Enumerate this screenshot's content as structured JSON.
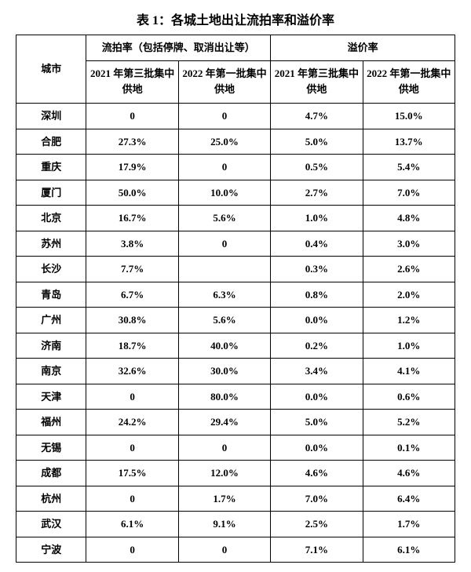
{
  "title": "表 1：各城土地出让流拍率和溢价率",
  "header": {
    "city_label": "城市",
    "group1": "流拍率（包括停牌、取消出让等）",
    "group2": "溢价率",
    "sub1": "2021 年第三批集中供地",
    "sub2": "2022 年第一批集中供地",
    "sub3": "2021 年第三批集中供地",
    "sub4": "2022 年第一批集中供地"
  },
  "rows": [
    {
      "city": "深圳",
      "c1": "0",
      "c2": "0",
      "c3": "4.7%",
      "c4": "15.0%"
    },
    {
      "city": "合肥",
      "c1": "27.3%",
      "c2": "25.0%",
      "c3": "5.0%",
      "c4": "13.7%"
    },
    {
      "city": "重庆",
      "c1": "17.9%",
      "c2": "0",
      "c3": "0.5%",
      "c4": "5.4%"
    },
    {
      "city": "厦门",
      "c1": "50.0%",
      "c2": "10.0%",
      "c3": "2.7%",
      "c4": "7.0%"
    },
    {
      "city": "北京",
      "c1": "16.7%",
      "c2": "5.6%",
      "c3": "1.0%",
      "c4": "4.8%"
    },
    {
      "city": "苏州",
      "c1": "3.8%",
      "c2": "0",
      "c3": "0.4%",
      "c4": "3.0%"
    },
    {
      "city": "长沙",
      "c1": "7.7%",
      "c2": "",
      "c3": "0.3%",
      "c4": "2.6%"
    },
    {
      "city": "青岛",
      "c1": "6.7%",
      "c2": "6.3%",
      "c3": "0.8%",
      "c4": "2.0%"
    },
    {
      "city": "广州",
      "c1": "30.8%",
      "c2": "5.6%",
      "c3": "0.0%",
      "c4": "1.2%"
    },
    {
      "city": "济南",
      "c1": "18.7%",
      "c2": "40.0%",
      "c3": "0.2%",
      "c4": "1.0%"
    },
    {
      "city": "南京",
      "c1": "32.6%",
      "c2": "30.0%",
      "c3": "3.4%",
      "c4": "4.1%"
    },
    {
      "city": "天津",
      "c1": "0",
      "c2": "80.0%",
      "c3": "0.0%",
      "c4": "0.6%"
    },
    {
      "city": "福州",
      "c1": "24.2%",
      "c2": "29.4%",
      "c3": "5.0%",
      "c4": "5.2%"
    },
    {
      "city": "无锡",
      "c1": "0",
      "c2": "0",
      "c3": "0.0%",
      "c4": "0.1%"
    },
    {
      "city": "成都",
      "c1": "17.5%",
      "c2": "12.0%",
      "c3": "4.6%",
      "c4": "4.6%"
    },
    {
      "city": "杭州",
      "c1": "0",
      "c2": "1.7%",
      "c3": "7.0%",
      "c4": "6.4%"
    },
    {
      "city": "武汉",
      "c1": "6.1%",
      "c2": "9.1%",
      "c3": "2.5%",
      "c4": "1.7%"
    },
    {
      "city": "宁波",
      "c1": "0",
      "c2": "0",
      "c3": "7.1%",
      "c4": "6.1%"
    }
  ]
}
